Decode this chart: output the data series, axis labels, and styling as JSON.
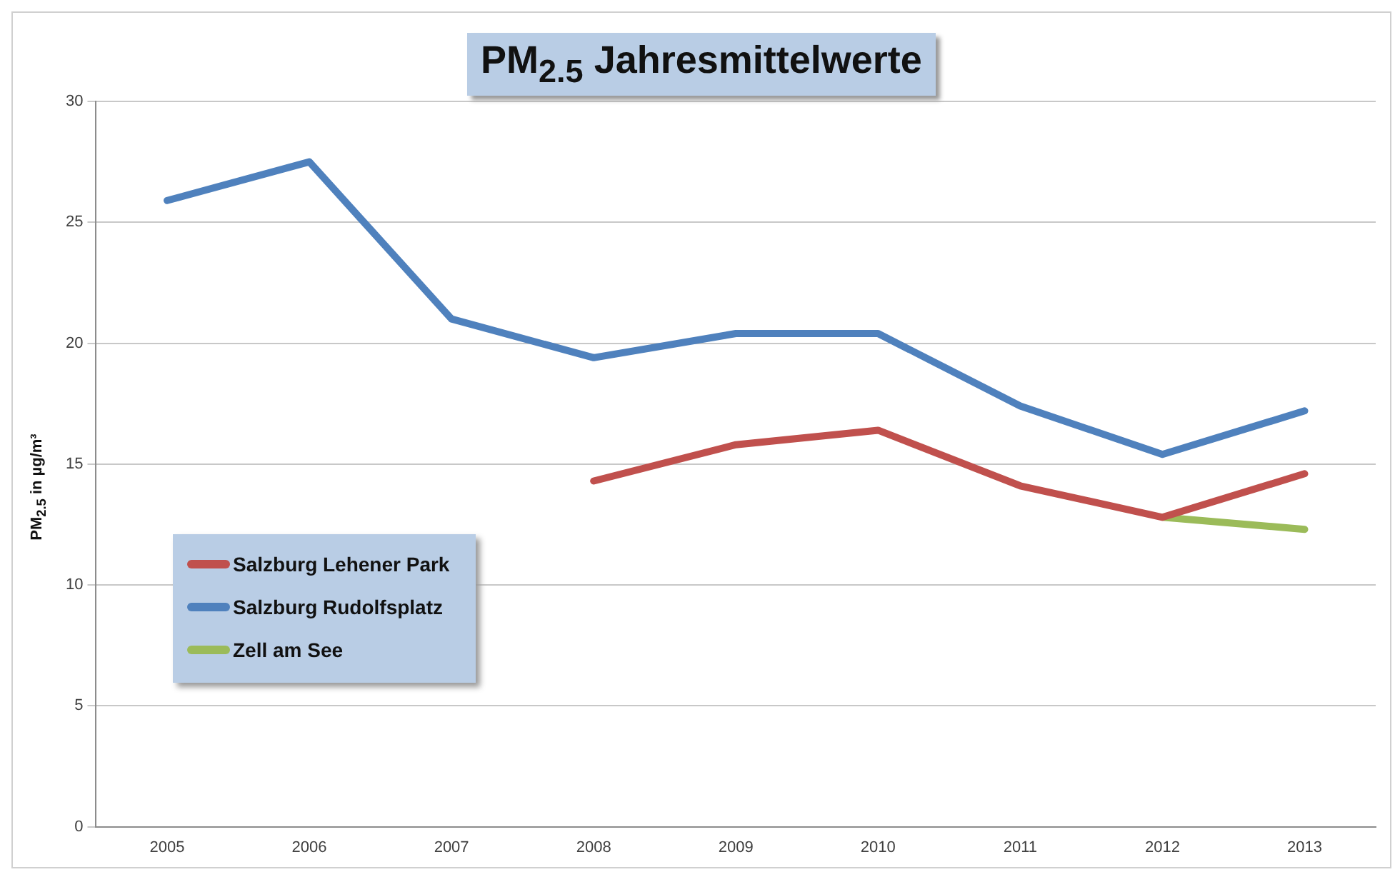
{
  "chart_data": {
    "type": "line",
    "title": "PM$_{2.5}$ Jahresmittelwerte",
    "ylabel": "PM$_{2.5}$ in µg/m³",
    "categories": [
      "2005",
      "2006",
      "2007",
      "2008",
      "2009",
      "2010",
      "2011",
      "2012",
      "2013"
    ],
    "series": [
      {
        "name": "Salzburg Lehener Park",
        "color": "#c0504d",
        "values": [
          null,
          null,
          null,
          14.3,
          15.8,
          16.4,
          14.1,
          12.8,
          14.6
        ]
      },
      {
        "name": "Salzburg Rudolfsplatz",
        "color": "#4f81bd",
        "values": [
          25.9,
          27.5,
          21.0,
          19.4,
          20.4,
          20.4,
          17.4,
          15.4,
          17.2
        ]
      },
      {
        "name": "Zell am See",
        "color": "#9bbb59",
        "values": [
          null,
          null,
          null,
          null,
          null,
          null,
          null,
          12.8,
          12.3
        ]
      }
    ],
    "ylim": [
      0,
      30
    ],
    "yticks": [
      0,
      5,
      10,
      15,
      20,
      25,
      30
    ],
    "grid": "y",
    "legend": "left",
    "marker": "none",
    "line_style": "solid"
  }
}
